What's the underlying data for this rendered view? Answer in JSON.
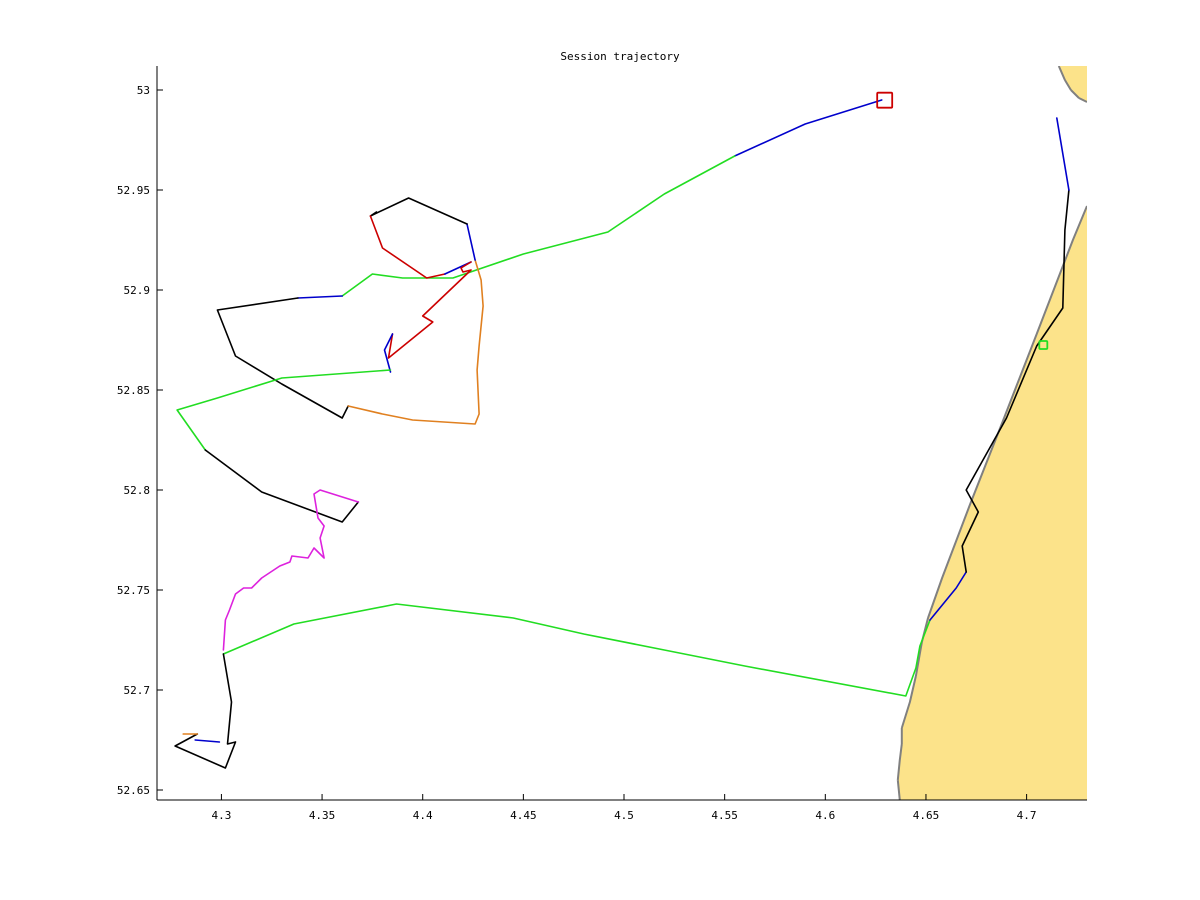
{
  "chart_data": {
    "type": "line",
    "title": "Session trajectory",
    "xlabel": "",
    "ylabel": "",
    "xlim": [
      4.268,
      4.73
    ],
    "ylim": [
      52.645,
      53.012
    ],
    "xticks": [
      "4.3",
      "4.35",
      "4.4",
      "4.45",
      "4.5",
      "4.55",
      "4.6",
      "4.65",
      "4.7"
    ],
    "yticks": [
      "52.65",
      "52.7",
      "52.75",
      "52.8",
      "52.85",
      "52.9",
      "52.95",
      "53"
    ],
    "grid": false,
    "legend": "none",
    "land_color": "#fce38a",
    "coast_color": "#808080",
    "land_regions": [
      {
        "name": "mainland",
        "points": [
          [
            4.73,
            52.942
          ],
          [
            4.723,
            52.925
          ],
          [
            4.705,
            52.878
          ],
          [
            4.688,
            52.834
          ],
          [
            4.672,
            52.793
          ],
          [
            4.658,
            52.756
          ],
          [
            4.651,
            52.736
          ],
          [
            4.648,
            52.724
          ],
          [
            4.645,
            52.707
          ],
          [
            4.642,
            52.694
          ],
          [
            4.638,
            52.681
          ],
          [
            4.638,
            52.673
          ],
          [
            4.637,
            52.665
          ],
          [
            4.636,
            52.655
          ],
          [
            4.637,
            52.645
          ],
          [
            4.73,
            52.645
          ]
        ]
      },
      {
        "name": "island",
        "points": [
          [
            4.716,
            53.012
          ],
          [
            4.719,
            53.005
          ],
          [
            4.722,
            53.0
          ],
          [
            4.726,
            52.996
          ],
          [
            4.73,
            52.994
          ],
          [
            4.73,
            53.012
          ]
        ]
      }
    ],
    "series": [
      {
        "color": "#0000cc",
        "points": [
          [
            4.628,
            52.995
          ],
          [
            4.59,
            52.983
          ],
          [
            4.555,
            52.967
          ]
        ]
      },
      {
        "color": "#22dd22",
        "points": [
          [
            4.555,
            52.967
          ],
          [
            4.52,
            52.948
          ],
          [
            4.492,
            52.929
          ],
          [
            4.45,
            52.918
          ],
          [
            4.415,
            52.906
          ],
          [
            4.39,
            52.906
          ],
          [
            4.375,
            52.908
          ],
          [
            4.36,
            52.897
          ]
        ]
      },
      {
        "color": "#0000cc",
        "points": [
          [
            4.36,
            52.897
          ],
          [
            4.338,
            52.896
          ]
        ]
      },
      {
        "color": "#000000",
        "points": [
          [
            4.338,
            52.896
          ],
          [
            4.298,
            52.89
          ],
          [
            4.307,
            52.867
          ],
          [
            4.33,
            52.853
          ],
          [
            4.36,
            52.836
          ],
          [
            4.363,
            52.842
          ]
        ]
      },
      {
        "color": "#e08020",
        "points": [
          [
            4.363,
            52.842
          ],
          [
            4.38,
            52.838
          ],
          [
            4.395,
            52.835
          ],
          [
            4.426,
            52.833
          ],
          [
            4.428,
            52.838
          ],
          [
            4.427,
            52.86
          ],
          [
            4.428,
            52.872
          ],
          [
            4.43,
            52.892
          ],
          [
            4.429,
            52.905
          ],
          [
            4.426,
            52.915
          ]
        ]
      },
      {
        "color": "#0000cc",
        "points": [
          [
            4.426,
            52.915
          ],
          [
            4.422,
            52.933
          ]
        ]
      },
      {
        "color": "#000000",
        "points": [
          [
            4.422,
            52.933
          ],
          [
            4.393,
            52.946
          ],
          [
            4.374,
            52.937
          ],
          [
            4.377,
            52.939
          ]
        ]
      },
      {
        "color": "#cc0000",
        "points": [
          [
            4.374,
            52.937
          ],
          [
            4.38,
            52.921
          ],
          [
            4.402,
            52.906
          ],
          [
            4.411,
            52.908
          ]
        ]
      },
      {
        "color": "#0000cc",
        "points": [
          [
            4.411,
            52.908
          ],
          [
            4.424,
            52.914
          ]
        ]
      },
      {
        "color": "#cc0000",
        "points": [
          [
            4.424,
            52.914
          ],
          [
            4.419,
            52.911
          ],
          [
            4.42,
            52.909
          ],
          [
            4.424,
            52.91
          ],
          [
            4.4,
            52.887
          ],
          [
            4.405,
            52.884
          ],
          [
            4.383,
            52.866
          ],
          [
            4.385,
            52.878
          ]
        ]
      },
      {
        "color": "#0000cc",
        "points": [
          [
            4.385,
            52.878
          ],
          [
            4.381,
            52.87
          ],
          [
            4.384,
            52.859
          ]
        ]
      },
      {
        "color": "#22dd22",
        "points": [
          [
            4.384,
            52.86
          ],
          [
            4.33,
            52.856
          ],
          [
            4.298,
            52.846
          ],
          [
            4.278,
            52.84
          ],
          [
            4.292,
            52.82
          ]
        ]
      },
      {
        "color": "#000000",
        "points": [
          [
            4.292,
            52.82
          ],
          [
            4.32,
            52.799
          ],
          [
            4.36,
            52.784
          ],
          [
            4.368,
            52.794
          ]
        ]
      },
      {
        "color": "#dd22dd",
        "points": [
          [
            4.368,
            52.794
          ],
          [
            4.349,
            52.8
          ],
          [
            4.346,
            52.798
          ],
          [
            4.348,
            52.786
          ],
          [
            4.351,
            52.782
          ],
          [
            4.349,
            52.776
          ],
          [
            4.351,
            52.766
          ],
          [
            4.346,
            52.771
          ],
          [
            4.343,
            52.766
          ],
          [
            4.335,
            52.767
          ],
          [
            4.334,
            52.764
          ],
          [
            4.329,
            52.762
          ],
          [
            4.32,
            52.756
          ],
          [
            4.315,
            52.751
          ],
          [
            4.311,
            52.751
          ],
          [
            4.307,
            52.748
          ],
          [
            4.304,
            52.74
          ],
          [
            4.302,
            52.735
          ],
          [
            4.301,
            52.72
          ]
        ]
      },
      {
        "color": "#22dd22",
        "points": [
          [
            4.301,
            52.718
          ],
          [
            4.336,
            52.733
          ],
          [
            4.387,
            52.743
          ],
          [
            4.445,
            52.736
          ],
          [
            4.48,
            52.728
          ],
          [
            4.52,
            52.72
          ],
          [
            4.56,
            52.712
          ],
          [
            4.64,
            52.697
          ],
          [
            4.645,
            52.711
          ],
          [
            4.647,
            52.722
          ],
          [
            4.652,
            52.735
          ]
        ]
      },
      {
        "color": "#0000cc",
        "points": [
          [
            4.652,
            52.735
          ],
          [
            4.665,
            52.751
          ],
          [
            4.67,
            52.759
          ]
        ]
      },
      {
        "color": "#000000",
        "points": [
          [
            4.67,
            52.759
          ],
          [
            4.668,
            52.772
          ],
          [
            4.676,
            52.789
          ],
          [
            4.67,
            52.8
          ],
          [
            4.69,
            52.836
          ],
          [
            4.705,
            52.872
          ],
          [
            4.718,
            52.891
          ],
          [
            4.719,
            52.93
          ],
          [
            4.721,
            52.95
          ]
        ]
      },
      {
        "color": "#0000cc",
        "points": [
          [
            4.721,
            52.95
          ],
          [
            4.715,
            52.986
          ]
        ]
      },
      {
        "color": "#000000",
        "points": [
          [
            4.301,
            52.718
          ],
          [
            4.305,
            52.694
          ],
          [
            4.303,
            52.673
          ],
          [
            4.307,
            52.674
          ],
          [
            4.302,
            52.661
          ],
          [
            4.277,
            52.672
          ],
          [
            4.288,
            52.678
          ]
        ]
      },
      {
        "color": "#e08020",
        "points": [
          [
            4.288,
            52.678
          ],
          [
            4.281,
            52.678
          ]
        ]
      },
      {
        "color": "#0000cc",
        "points": [
          [
            4.287,
            52.675
          ],
          [
            4.299,
            52.674
          ]
        ]
      }
    ],
    "markers": [
      {
        "name": "start-marker",
        "shape": "square",
        "color": "#cc0000",
        "x": 4.6295,
        "y": 52.9949,
        "size": 15
      },
      {
        "name": "end-marker",
        "shape": "square",
        "color": "#22dd22",
        "x": 4.7083,
        "y": 52.8725,
        "size": 8
      }
    ]
  }
}
